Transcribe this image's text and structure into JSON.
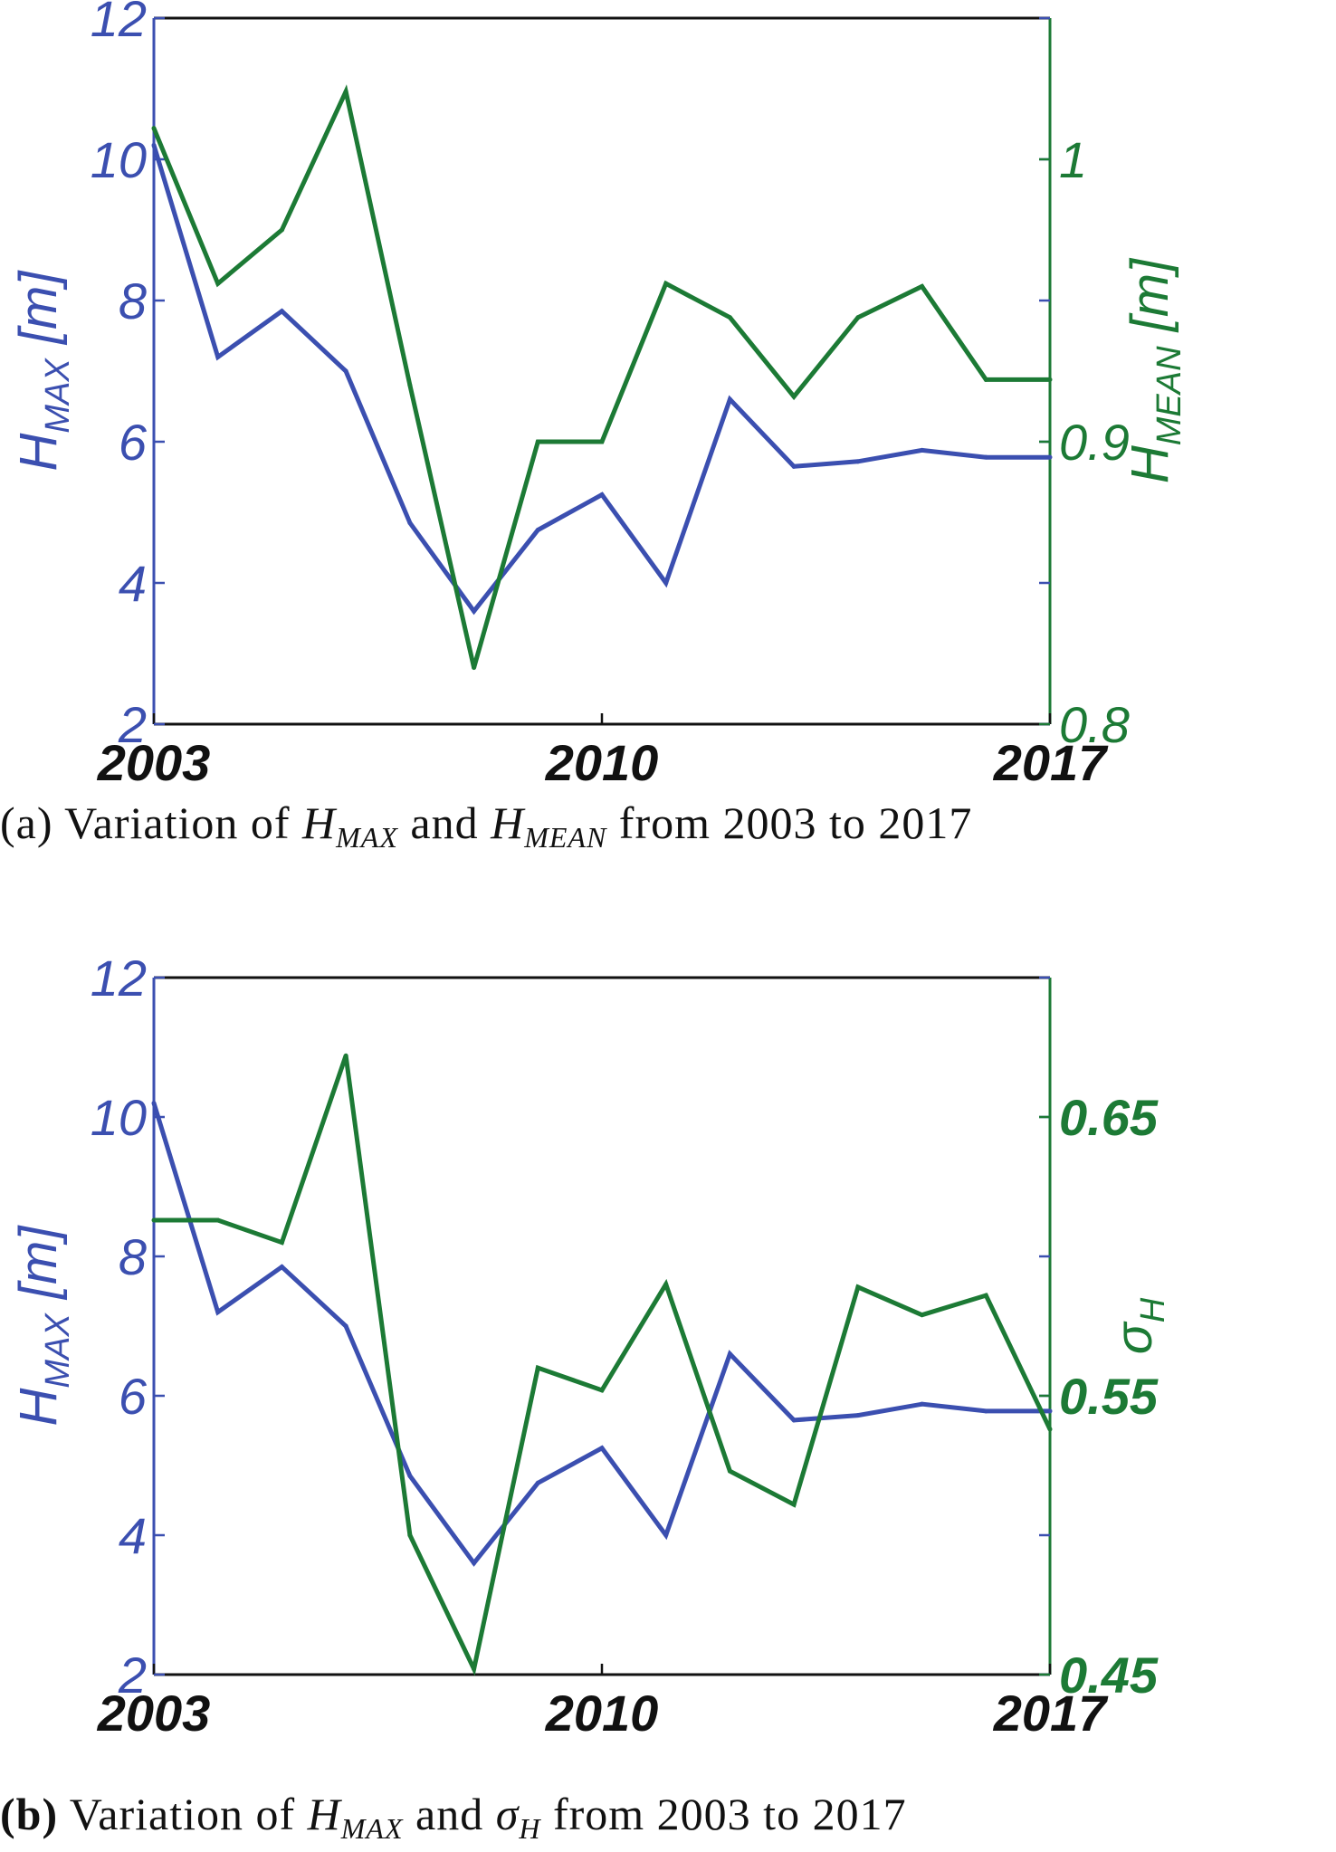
{
  "colors": {
    "hmax": "#3b4fb0",
    "right_series": "#1c7a35",
    "axis": "#111111"
  },
  "chart_data": [
    {
      "id": "a",
      "type": "line",
      "x": [
        2003,
        2004,
        2005,
        2006,
        2007,
        2008,
        2009,
        2010,
        2011,
        2012,
        2013,
        2014,
        2015,
        2016,
        2017
      ],
      "x_ticks": [
        "2003",
        "2010",
        "2017"
      ],
      "x_tick_values": [
        2003,
        2010,
        2017
      ],
      "xlim": [
        2003,
        2017
      ],
      "left_axis": {
        "label_main": "H",
        "label_sub": "MAX",
        "label_unit": " [m]",
        "ylim": [
          2,
          12
        ],
        "ticks": [
          "2",
          "4",
          "6",
          "8",
          "10",
          "12"
        ],
        "tick_values": [
          2,
          4,
          6,
          8,
          10,
          12
        ]
      },
      "right_axis": {
        "label_main": "H",
        "label_sub": "MEAN",
        "label_unit": " [m]",
        "ylim": [
          0.8,
          1.05
        ],
        "ticks": [
          "0.8",
          "0.9",
          "1"
        ],
        "tick_values": [
          0.8,
          0.9,
          1.0
        ]
      },
      "series": [
        {
          "name": "H_MAX",
          "axis": "left",
          "values": [
            10.2,
            7.2,
            7.85,
            7.0,
            4.85,
            3.6,
            4.75,
            5.25,
            4.0,
            6.6,
            5.65,
            5.72,
            5.88,
            5.78,
            5.78
          ]
        },
        {
          "name": "H_MEAN",
          "axis": "right",
          "values": [
            1.011,
            0.956,
            0.975,
            1.024,
            0.92,
            0.82,
            0.9,
            0.9,
            0.956,
            0.944,
            0.916,
            0.944,
            0.955,
            0.922,
            0.922
          ]
        }
      ],
      "caption": {
        "prefix": "(a)",
        "text_1": " Variation of ",
        "var1_main": "H",
        "var1_sub": "MAX",
        "text_2": " and ",
        "var2_main": "H",
        "var2_sub": "MEAN",
        "text_3": " from 2003 to 2017"
      }
    },
    {
      "id": "b",
      "type": "line",
      "x": [
        2003,
        2004,
        2005,
        2006,
        2007,
        2008,
        2009,
        2010,
        2011,
        2012,
        2013,
        2014,
        2015,
        2016,
        2017
      ],
      "x_ticks": [
        "2003",
        "2010",
        "2017"
      ],
      "x_tick_values": [
        2003,
        2010,
        2017
      ],
      "xlim": [
        2003,
        2017
      ],
      "left_axis": {
        "label_main": "H",
        "label_sub": "MAX",
        "label_unit": " [m]",
        "ylim": [
          2,
          12
        ],
        "ticks": [
          "2",
          "4",
          "6",
          "8",
          "10",
          "12"
        ],
        "tick_values": [
          2,
          4,
          6,
          8,
          10,
          12
        ]
      },
      "right_axis": {
        "label_main": "σ",
        "label_sub": "H",
        "label_unit": "",
        "ylim": [
          0.45,
          0.7
        ],
        "ticks": [
          "0.45",
          "0.55",
          "0.65"
        ],
        "tick_values": [
          0.45,
          0.55,
          0.65
        ]
      },
      "series": [
        {
          "name": "H_MAX",
          "axis": "left",
          "values": [
            10.2,
            7.2,
            7.85,
            7.0,
            4.85,
            3.6,
            4.75,
            5.25,
            4.0,
            6.6,
            5.65,
            5.72,
            5.88,
            5.78,
            5.78
          ]
        },
        {
          "name": "sigma_H",
          "axis": "right",
          "values": [
            0.613,
            0.613,
            0.605,
            0.672,
            0.5,
            0.452,
            0.56,
            0.552,
            0.59,
            0.523,
            0.511,
            0.589,
            0.579,
            0.586,
            0.538
          ]
        }
      ],
      "caption": {
        "prefix": "(b)",
        "text_1": " Variation of ",
        "var1_main": "H",
        "var1_sub": "MAX",
        "text_2": " and ",
        "var2_main": "σ",
        "var2_sub": "H",
        "text_3": " from 2003 to 2017"
      }
    }
  ]
}
